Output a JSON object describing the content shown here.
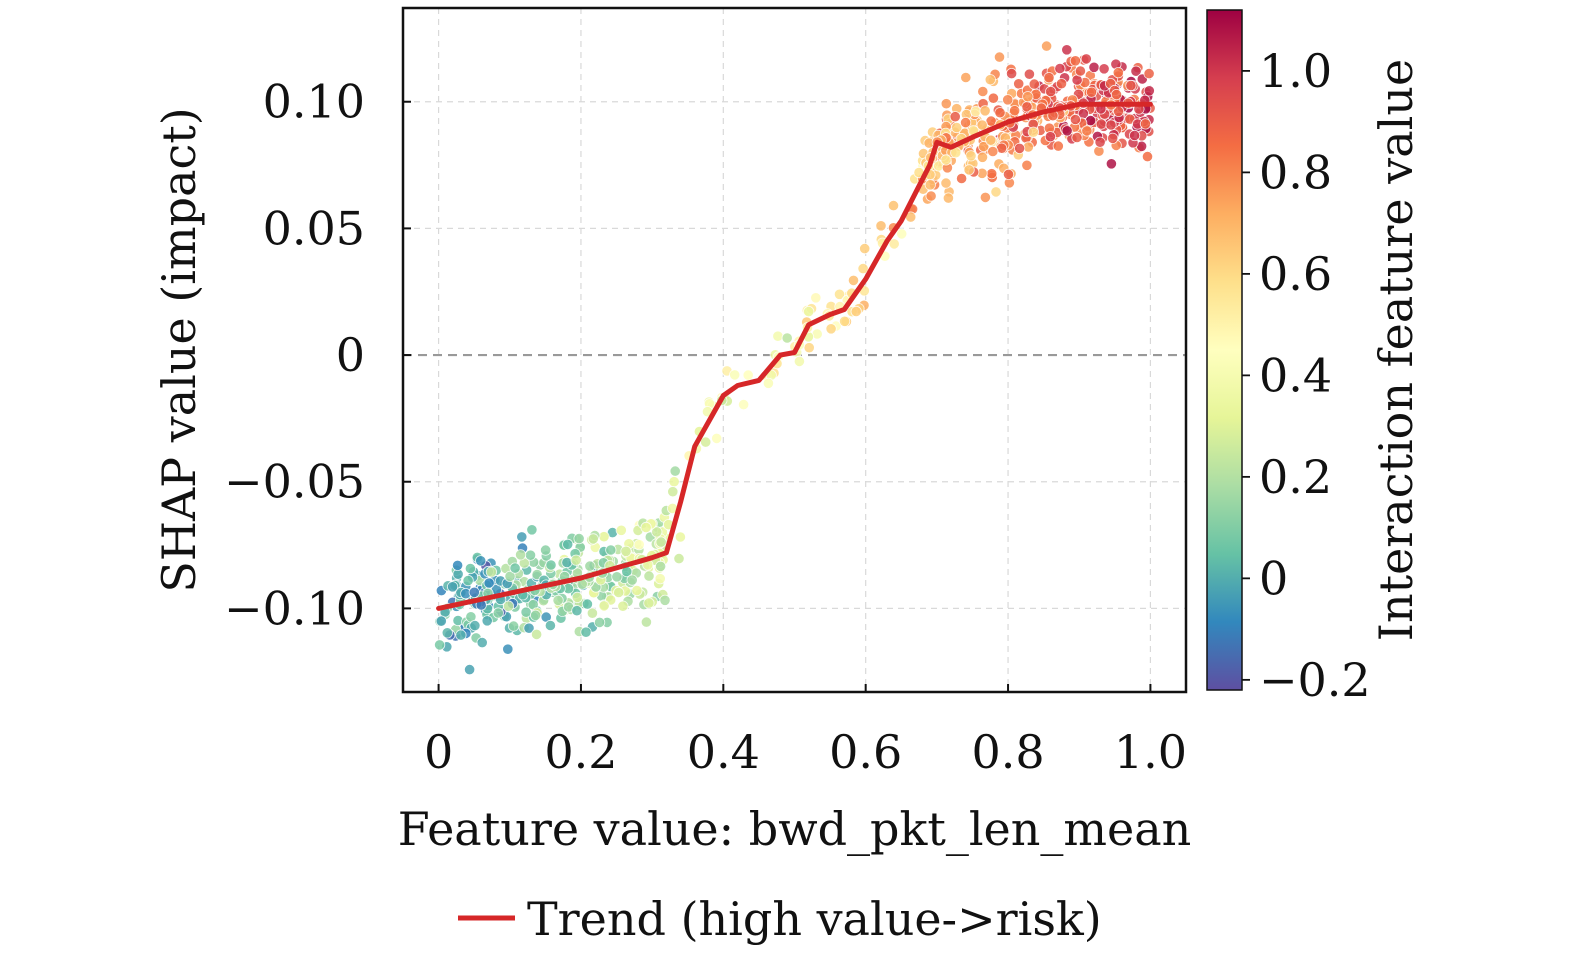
{
  "chart_data": {
    "type": "scatter",
    "xlabel": "Feature value: bwd_pkt_len_mean",
    "ylabel": "SHAP value (impact)",
    "colorbar_label": "Interaction feature value",
    "xlim": [
      -0.05,
      1.05
    ],
    "ylim": [
      -0.133,
      0.137
    ],
    "x_ticks": [
      0,
      0.2,
      0.4,
      0.6,
      0.8,
      1.0
    ],
    "x_tick_labels": [
      "0",
      "0.2",
      "0.4",
      "0.6",
      "0.8",
      "1.0"
    ],
    "y_ticks": [
      -0.1,
      -0.05,
      0,
      0.05,
      0.1
    ],
    "y_tick_labels": [
      "−0.10",
      "−0.05",
      "0",
      "0.05",
      "0.10"
    ],
    "colorbar_range": [
      -0.22,
      1.12
    ],
    "colorbar_ticks": [
      -0.2,
      0,
      0.2,
      0.4,
      0.6,
      0.8,
      1.0
    ],
    "colorbar_tick_labels": [
      "−0.2",
      "0",
      "0.2",
      "0.4",
      "0.6",
      "0.8",
      "1.0"
    ],
    "colormap": "Spectral_r",
    "grid": true,
    "zero_line": true,
    "legend": {
      "position": "bottom-center",
      "entries": [
        {
          "label": "Trend (high value->risk)",
          "color": "#d62728"
        }
      ]
    },
    "trend_line": {
      "name": "Trend (high value->risk)",
      "color": "#d62728",
      "x": [
        0.0,
        0.05,
        0.1,
        0.15,
        0.2,
        0.25,
        0.3,
        0.32,
        0.34,
        0.36,
        0.38,
        0.4,
        0.42,
        0.45,
        0.48,
        0.5,
        0.52,
        0.55,
        0.57,
        0.6,
        0.63,
        0.65,
        0.67,
        0.69,
        0.7,
        0.72,
        0.75,
        0.8,
        0.85,
        0.9,
        0.95,
        1.0
      ],
      "y": [
        -0.1,
        -0.097,
        -0.094,
        -0.091,
        -0.088,
        -0.084,
        -0.08,
        -0.078,
        -0.058,
        -0.036,
        -0.026,
        -0.016,
        -0.012,
        -0.01,
        0.0,
        0.001,
        0.012,
        0.016,
        0.018,
        0.03,
        0.045,
        0.053,
        0.064,
        0.075,
        0.084,
        0.082,
        0.086,
        0.092,
        0.096,
        0.099,
        0.099,
        0.099
      ]
    }
  }
}
